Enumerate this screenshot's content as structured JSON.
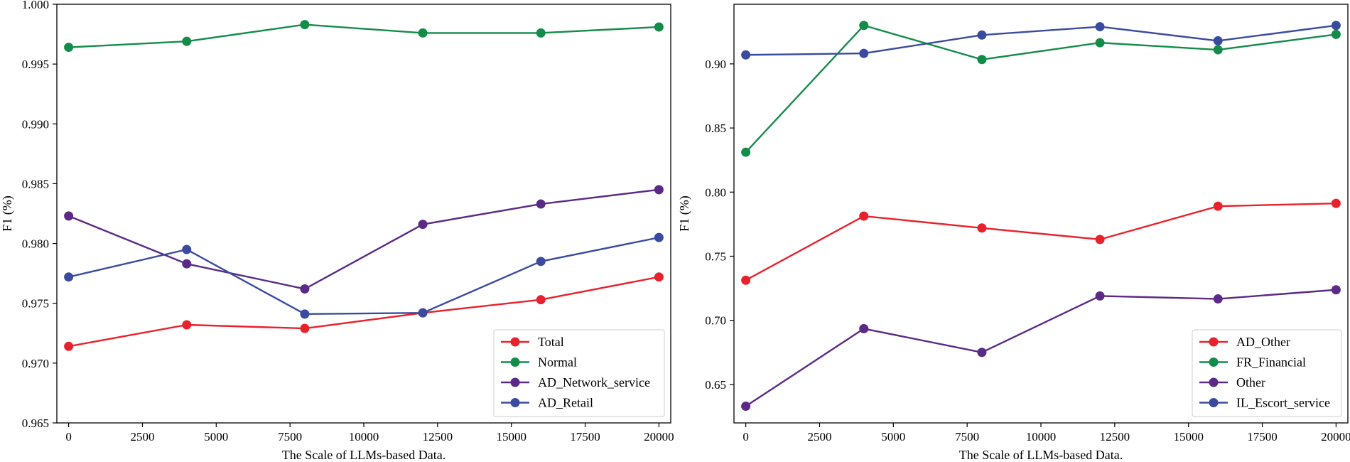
{
  "chart_data": [
    {
      "type": "line",
      "title": "",
      "xlabel": "The Scale of LLMs-based Data.",
      "ylabel": "F1 (%)",
      "xlim": [
        -400,
        20400
      ],
      "ylim": [
        0.965,
        1.0
      ],
      "xticks": [
        0,
        2500,
        5000,
        7500,
        10000,
        12500,
        15000,
        17500,
        20000
      ],
      "yticks": [
        0.965,
        0.97,
        0.975,
        0.98,
        0.985,
        0.99,
        0.995,
        1.0
      ],
      "ytick_decimals": 3,
      "grid": false,
      "legend_position": "bottom-right",
      "x": [
        0,
        4000,
        8000,
        12000,
        16000,
        20000
      ],
      "series": [
        {
          "name": "Total",
          "color": "#e8222d",
          "values": [
            0.9714,
            0.9732,
            0.9729,
            0.9742,
            0.9753,
            0.9772
          ]
        },
        {
          "name": "Normal",
          "color": "#138c4a",
          "values": [
            0.9964,
            0.9969,
            0.9983,
            0.9976,
            0.9976,
            0.9981
          ]
        },
        {
          "name": "AD_Network_service",
          "color": "#5b2a86",
          "values": [
            0.9823,
            0.9783,
            0.9762,
            0.9816,
            0.9833,
            0.9845
          ]
        },
        {
          "name": "AD_Retail",
          "color": "#3a4b9f",
          "values": [
            0.9772,
            0.9795,
            0.9741,
            0.9742,
            0.9785,
            0.9805
          ]
        }
      ]
    },
    {
      "type": "line",
      "title": "",
      "xlabel": "The Scale of LLMs-based Data.",
      "ylabel": "F1 (%)",
      "xlim": [
        -400,
        20400
      ],
      "ylim": [
        0.62,
        0.9465
      ],
      "xticks": [
        0,
        2500,
        5000,
        7500,
        10000,
        12500,
        15000,
        17500,
        20000
      ],
      "yticks": [
        0.65,
        0.7,
        0.75,
        0.8,
        0.85,
        0.9
      ],
      "ytick_decimals": 2,
      "grid": false,
      "legend_position": "bottom-right",
      "x": [
        0,
        4000,
        8000,
        12000,
        16000,
        20000
      ],
      "series": [
        {
          "name": "AD_Other",
          "color": "#e8222d",
          "values": [
            0.7313,
            0.7813,
            0.772,
            0.7631,
            0.789,
            0.7912
          ]
        },
        {
          "name": "FR_Financial",
          "color": "#138c4a",
          "values": [
            0.8311,
            0.93,
            0.9034,
            0.9165,
            0.911,
            0.923
          ]
        },
        {
          "name": "Other",
          "color": "#5b2a86",
          "values": [
            0.633,
            0.6935,
            0.675,
            0.719,
            0.7167,
            0.7238
          ]
        },
        {
          "name": "IL_Escort_service",
          "color": "#3a4b9f",
          "values": [
            0.907,
            0.9082,
            0.9225,
            0.929,
            0.918,
            0.93
          ]
        }
      ]
    }
  ]
}
